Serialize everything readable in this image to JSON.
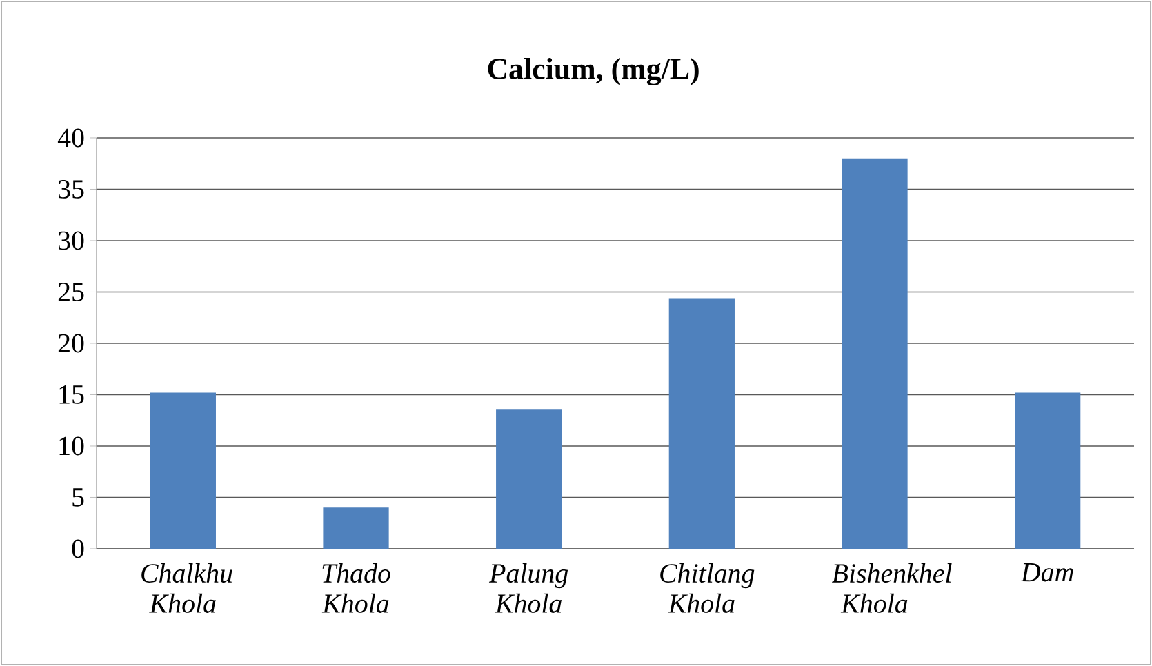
{
  "chart_data": {
    "type": "bar",
    "title": "Calcium, (mg/L)",
    "categories": [
      "Chalkhu Khola",
      "Thado Khola",
      "Palung Khola",
      "Chitlang Khola",
      "Bishenkhel Khola",
      "Dam"
    ],
    "values": [
      15.2,
      4.0,
      13.6,
      24.4,
      38.0,
      15.2
    ],
    "color": "#4f81bd",
    "ylim": [
      0,
      40
    ],
    "yticks": [
      0,
      5,
      10,
      15,
      20,
      25,
      30,
      35,
      40
    ],
    "grid": "y"
  }
}
